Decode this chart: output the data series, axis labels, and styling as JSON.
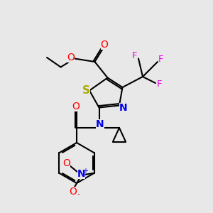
{
  "bg_color": "#e8e8e8",
  "bond_color": "#000000",
  "bond_width": 1.5,
  "atom_colors": {
    "C": "#000000",
    "O": "#ff0000",
    "N": "#0000ee",
    "S": "#aaaa00",
    "F": "#ee00ee"
  },
  "font_size": 10,
  "fig_size": [
    3.0,
    3.0
  ],
  "dpi": 100
}
